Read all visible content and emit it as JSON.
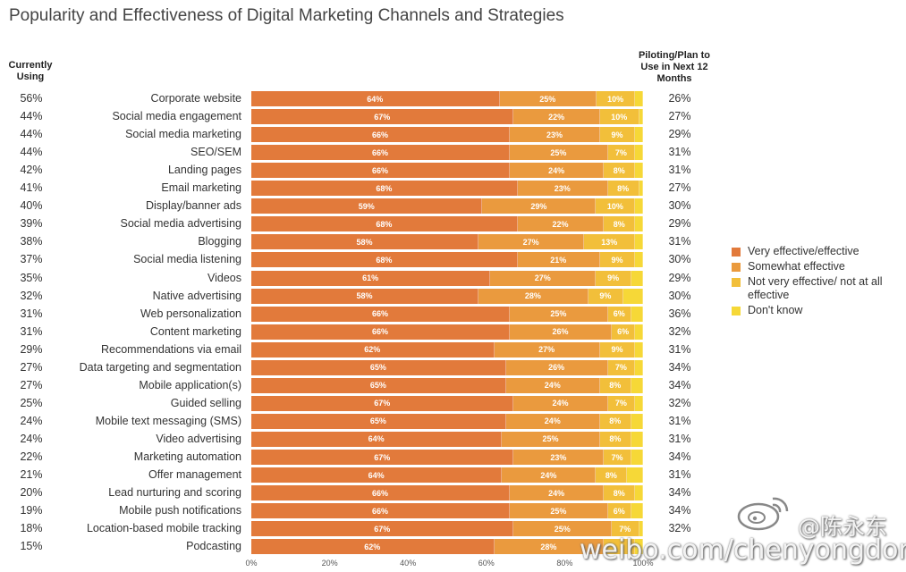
{
  "chart_data": {
    "type": "bar",
    "orientation": "horizontal",
    "stacked": true,
    "title": "Popularity and Effectiveness of Digital Marketing Channels and Strategies",
    "left_column_header": "Currently Using",
    "right_column_header": "Piloting/Plan to Use in Next 12 Months",
    "xlim": [
      0,
      100
    ],
    "x_ticks": [
      "0%",
      "20%",
      "40%",
      "60%",
      "80%",
      "100%"
    ],
    "legend_position": "right",
    "series": [
      {
        "name": "Very effective/effective",
        "color": "#E27A3B"
      },
      {
        "name": "Somewhat effective",
        "color": "#EA9A3E"
      },
      {
        "name": "Not very effective/ not at all effective",
        "color": "#F2BF3A"
      },
      {
        "name": "Don't know",
        "color": "#F6D837"
      }
    ],
    "rows": [
      {
        "category": "Corporate website",
        "current": "56%",
        "plan": "26%",
        "values": [
          64,
          25,
          10,
          2
        ],
        "labels": [
          "64%",
          "25%",
          "10%",
          ""
        ]
      },
      {
        "category": "Social media engagement",
        "current": "44%",
        "plan": "27%",
        "values": [
          67,
          22,
          10,
          1
        ],
        "labels": [
          "67%",
          "22%",
          "10%",
          ""
        ]
      },
      {
        "category": "Social media marketing",
        "current": "44%",
        "plan": "29%",
        "values": [
          66,
          23,
          9,
          2
        ],
        "labels": [
          "66%",
          "23%",
          "9%",
          ""
        ]
      },
      {
        "category": "SEO/SEM",
        "current": "44%",
        "plan": "31%",
        "values": [
          66,
          25,
          7,
          2
        ],
        "labels": [
          "66%",
          "25%",
          "7%",
          ""
        ]
      },
      {
        "category": "Landing pages",
        "current": "42%",
        "plan": "31%",
        "values": [
          66,
          24,
          8,
          2
        ],
        "labels": [
          "66%",
          "24%",
          "8%",
          ""
        ]
      },
      {
        "category": "Email marketing",
        "current": "41%",
        "plan": "27%",
        "values": [
          68,
          23,
          8,
          1
        ],
        "labels": [
          "68%",
          "23%",
          "8%",
          ""
        ]
      },
      {
        "category": "Display/banner ads",
        "current": "40%",
        "plan": "30%",
        "values": [
          59,
          29,
          10,
          2
        ],
        "labels": [
          "59%",
          "29%",
          "10%",
          ""
        ]
      },
      {
        "category": "Social media advertising",
        "current": "39%",
        "plan": "29%",
        "values": [
          68,
          22,
          8,
          2
        ],
        "labels": [
          "68%",
          "22%",
          "8%",
          ""
        ]
      },
      {
        "category": "Blogging",
        "current": "38%",
        "plan": "31%",
        "values": [
          58,
          27,
          13,
          2
        ],
        "labels": [
          "58%",
          "27%",
          "13%",
          ""
        ]
      },
      {
        "category": "Social media listening",
        "current": "37%",
        "plan": "30%",
        "values": [
          68,
          21,
          9,
          2
        ],
        "labels": [
          "68%",
          "21%",
          "9%",
          ""
        ]
      },
      {
        "category": "Videos",
        "current": "35%",
        "plan": "29%",
        "values": [
          61,
          27,
          9,
          3
        ],
        "labels": [
          "61%",
          "27%",
          "9%",
          ""
        ]
      },
      {
        "category": "Native advertising",
        "current": "32%",
        "plan": "30%",
        "values": [
          58,
          28,
          9,
          5
        ],
        "labels": [
          "58%",
          "28%",
          "9%",
          ""
        ]
      },
      {
        "category": "Web personalization",
        "current": "31%",
        "plan": "36%",
        "values": [
          66,
          25,
          6,
          3
        ],
        "labels": [
          "66%",
          "25%",
          "6%",
          ""
        ]
      },
      {
        "category": "Content marketing",
        "current": "31%",
        "plan": "32%",
        "values": [
          66,
          26,
          6,
          2
        ],
        "labels": [
          "66%",
          "26%",
          "6%",
          ""
        ]
      },
      {
        "category": "Recommendations via email",
        "current": "29%",
        "plan": "31%",
        "values": [
          62,
          27,
          9,
          2
        ],
        "labels": [
          "62%",
          "27%",
          "9%",
          ""
        ]
      },
      {
        "category": "Data targeting and segmentation",
        "current": "27%",
        "plan": "34%",
        "values": [
          65,
          26,
          7,
          2
        ],
        "labels": [
          "65%",
          "26%",
          "7%",
          ""
        ]
      },
      {
        "category": "Mobile application(s)",
        "current": "27%",
        "plan": "34%",
        "values": [
          65,
          24,
          8,
          3
        ],
        "labels": [
          "65%",
          "24%",
          "8%",
          ""
        ]
      },
      {
        "category": "Guided selling",
        "current": "25%",
        "plan": "32%",
        "values": [
          67,
          24,
          7,
          2
        ],
        "labels": [
          "67%",
          "24%",
          "7%",
          ""
        ]
      },
      {
        "category": "Mobile text messaging (SMS)",
        "current": "24%",
        "plan": "31%",
        "values": [
          65,
          24,
          8,
          3
        ],
        "labels": [
          "65%",
          "24%",
          "8%",
          ""
        ]
      },
      {
        "category": "Video advertising",
        "current": "24%",
        "plan": "31%",
        "values": [
          64,
          25,
          8,
          3
        ],
        "labels": [
          "64%",
          "25%",
          "8%",
          ""
        ]
      },
      {
        "category": "Marketing automation",
        "current": "22%",
        "plan": "34%",
        "values": [
          67,
          23,
          7,
          3
        ],
        "labels": [
          "67%",
          "23%",
          "7%",
          ""
        ]
      },
      {
        "category": "Offer management",
        "current": "21%",
        "plan": "31%",
        "values": [
          64,
          24,
          8,
          4
        ],
        "labels": [
          "64%",
          "24%",
          "8%",
          ""
        ]
      },
      {
        "category": "Lead nurturing and scoring",
        "current": "20%",
        "plan": "34%",
        "values": [
          66,
          24,
          8,
          2
        ],
        "labels": [
          "66%",
          "24%",
          "8%",
          ""
        ]
      },
      {
        "category": "Mobile push notifications",
        "current": "19%",
        "plan": "34%",
        "values": [
          66,
          25,
          6,
          3
        ],
        "labels": [
          "66%",
          "25%",
          "6%",
          ""
        ]
      },
      {
        "category": "Location-based mobile tracking",
        "current": "18%",
        "plan": "32%",
        "values": [
          67,
          25,
          7,
          1
        ],
        "labels": [
          "67%",
          "25%",
          "7%",
          ""
        ]
      },
      {
        "category": "Podcasting",
        "current": "15%",
        "plan": "",
        "values": [
          62,
          28,
          8,
          2
        ],
        "labels": [
          "62%",
          "28%",
          "",
          ""
        ]
      }
    ]
  },
  "watermark": {
    "url": "weibo.com/chenyongdong",
    "handle": "@陈永东"
  }
}
